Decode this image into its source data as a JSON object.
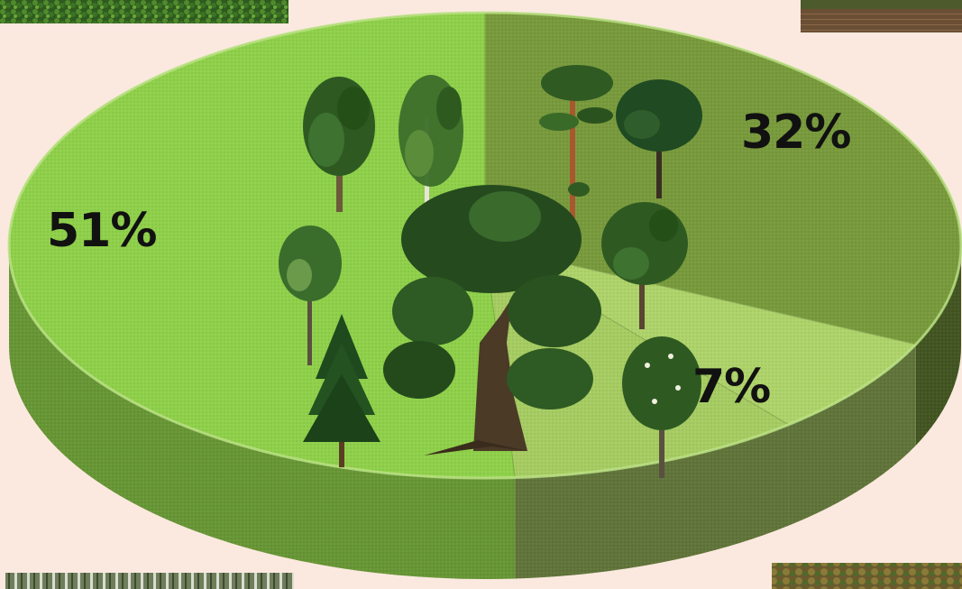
{
  "chart_data": {
    "type": "pie",
    "title": "",
    "slices": [
      {
        "label": "51%",
        "value": 51,
        "color": "#8fd04a"
      },
      {
        "label": "32%",
        "value": 32,
        "color": "#789a3c"
      },
      {
        "label": "7%",
        "value": 7,
        "color": "#aed36a"
      }
    ],
    "style": "3d-oval",
    "legend": "none"
  },
  "photos": [
    {
      "name": "forest-photo-top-left",
      "color": "#3f6a2a"
    },
    {
      "name": "forest-photo-top-right",
      "color": "#6b5b3a"
    },
    {
      "name": "forest-photo-bottom-left",
      "color": "#55664a"
    },
    {
      "name": "forest-photo-bottom-right",
      "color": "#6a7a3a"
    }
  ],
  "trees": [
    "oak-tree-icon",
    "spruce-tree-icon",
    "birch-tree-icon",
    "linden-tree-icon",
    "pine-tree-icon",
    "larch-tree-icon",
    "maple-tree-icon",
    "aspen-tree-icon",
    "chestnut-tree-icon"
  ]
}
